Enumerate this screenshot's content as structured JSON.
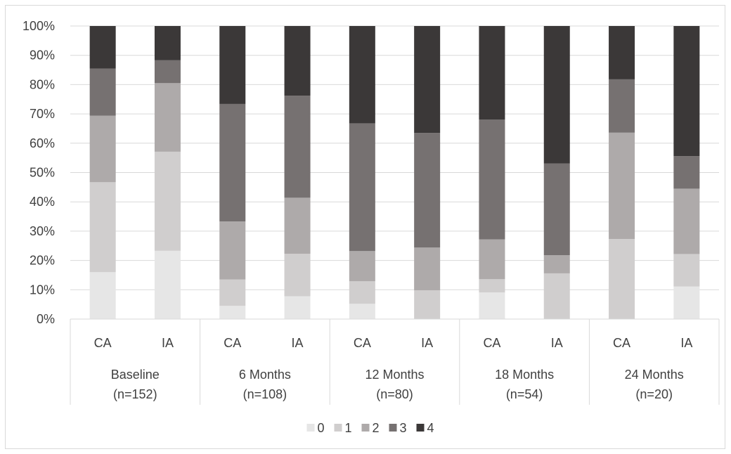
{
  "chart_data": {
    "type": "bar",
    "stacked": "percent",
    "groups": [
      {
        "line1": "Baseline",
        "line2": "(n=152)",
        "bars": [
          "CA",
          "IA"
        ]
      },
      {
        "line1": "6 Months",
        "line2": "(n=108)",
        "bars": [
          "CA",
          "IA"
        ]
      },
      {
        "line1": "12 Months",
        "line2": "(n=80)",
        "bars": [
          "CA",
          "IA"
        ]
      },
      {
        "line1": "18 Months",
        "line2": "(n=54)",
        "bars": [
          "CA",
          "IA"
        ]
      },
      {
        "line1": "24 Months",
        "line2": "(n=20)",
        "bars": [
          "CA",
          "IA"
        ]
      }
    ],
    "series": [
      {
        "name": "0",
        "color": "#e6e6e6",
        "values": [
          16,
          23.3,
          4.5,
          7.8,
          5.2,
          0,
          9.1,
          0,
          0,
          11.1
        ]
      },
      {
        "name": "1",
        "color": "#d0cece",
        "values": [
          30.7,
          33.8,
          9,
          14.5,
          7.7,
          9.8,
          4.5,
          15.6,
          27.3,
          11.1
        ]
      },
      {
        "name": "2",
        "color": "#aeaaaa",
        "values": [
          22.7,
          23.4,
          19.8,
          19.1,
          10.3,
          14.6,
          13.6,
          6.2,
          36.3,
          22.3
        ]
      },
      {
        "name": "3",
        "color": "#767171",
        "values": [
          16.1,
          7.8,
          40.1,
          34.8,
          43.6,
          39.1,
          40.9,
          31.3,
          18.2,
          11.1
        ]
      },
      {
        "name": "4",
        "color": "#3b3838",
        "values": [
          14.5,
          11.7,
          26.6,
          23.8,
          33.2,
          36.5,
          31.9,
          46.9,
          18.2,
          44.4
        ]
      }
    ],
    "y_ticks": [
      "0%",
      "10%",
      "20%",
      "30%",
      "40%",
      "50%",
      "60%",
      "70%",
      "80%",
      "90%",
      "100%"
    ],
    "ylim": [
      0,
      100
    ],
    "grid": true,
    "legend_position": "bottom"
  }
}
